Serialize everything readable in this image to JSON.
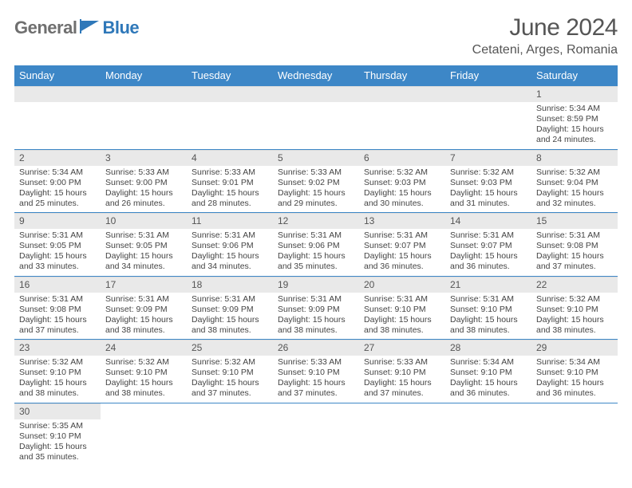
{
  "brand": {
    "part1": "General",
    "part2": "Blue"
  },
  "title": "June 2024",
  "location": "Cetateni, Arges, Romania",
  "colors": {
    "header_bg": "#3d87c7",
    "header_text": "#ffffff",
    "daynum_bg": "#e9e9e9",
    "cell_border": "#3d87c7",
    "brand_gray": "#6f6f6f",
    "brand_blue": "#2f78b9",
    "text": "#444444",
    "background": "#ffffff"
  },
  "weekdays": [
    "Sunday",
    "Monday",
    "Tuesday",
    "Wednesday",
    "Thursday",
    "Friday",
    "Saturday"
  ],
  "weeks": [
    [
      null,
      null,
      null,
      null,
      null,
      null,
      {
        "d": "1",
        "sr": "Sunrise: 5:34 AM",
        "ss": "Sunset: 8:59 PM",
        "dl1": "Daylight: 15 hours",
        "dl2": "and 24 minutes."
      }
    ],
    [
      {
        "d": "2",
        "sr": "Sunrise: 5:34 AM",
        "ss": "Sunset: 9:00 PM",
        "dl1": "Daylight: 15 hours",
        "dl2": "and 25 minutes."
      },
      {
        "d": "3",
        "sr": "Sunrise: 5:33 AM",
        "ss": "Sunset: 9:00 PM",
        "dl1": "Daylight: 15 hours",
        "dl2": "and 26 minutes."
      },
      {
        "d": "4",
        "sr": "Sunrise: 5:33 AM",
        "ss": "Sunset: 9:01 PM",
        "dl1": "Daylight: 15 hours",
        "dl2": "and 28 minutes."
      },
      {
        "d": "5",
        "sr": "Sunrise: 5:33 AM",
        "ss": "Sunset: 9:02 PM",
        "dl1": "Daylight: 15 hours",
        "dl2": "and 29 minutes."
      },
      {
        "d": "6",
        "sr": "Sunrise: 5:32 AM",
        "ss": "Sunset: 9:03 PM",
        "dl1": "Daylight: 15 hours",
        "dl2": "and 30 minutes."
      },
      {
        "d": "7",
        "sr": "Sunrise: 5:32 AM",
        "ss": "Sunset: 9:03 PM",
        "dl1": "Daylight: 15 hours",
        "dl2": "and 31 minutes."
      },
      {
        "d": "8",
        "sr": "Sunrise: 5:32 AM",
        "ss": "Sunset: 9:04 PM",
        "dl1": "Daylight: 15 hours",
        "dl2": "and 32 minutes."
      }
    ],
    [
      {
        "d": "9",
        "sr": "Sunrise: 5:31 AM",
        "ss": "Sunset: 9:05 PM",
        "dl1": "Daylight: 15 hours",
        "dl2": "and 33 minutes."
      },
      {
        "d": "10",
        "sr": "Sunrise: 5:31 AM",
        "ss": "Sunset: 9:05 PM",
        "dl1": "Daylight: 15 hours",
        "dl2": "and 34 minutes."
      },
      {
        "d": "11",
        "sr": "Sunrise: 5:31 AM",
        "ss": "Sunset: 9:06 PM",
        "dl1": "Daylight: 15 hours",
        "dl2": "and 34 minutes."
      },
      {
        "d": "12",
        "sr": "Sunrise: 5:31 AM",
        "ss": "Sunset: 9:06 PM",
        "dl1": "Daylight: 15 hours",
        "dl2": "and 35 minutes."
      },
      {
        "d": "13",
        "sr": "Sunrise: 5:31 AM",
        "ss": "Sunset: 9:07 PM",
        "dl1": "Daylight: 15 hours",
        "dl2": "and 36 minutes."
      },
      {
        "d": "14",
        "sr": "Sunrise: 5:31 AM",
        "ss": "Sunset: 9:07 PM",
        "dl1": "Daylight: 15 hours",
        "dl2": "and 36 minutes."
      },
      {
        "d": "15",
        "sr": "Sunrise: 5:31 AM",
        "ss": "Sunset: 9:08 PM",
        "dl1": "Daylight: 15 hours",
        "dl2": "and 37 minutes."
      }
    ],
    [
      {
        "d": "16",
        "sr": "Sunrise: 5:31 AM",
        "ss": "Sunset: 9:08 PM",
        "dl1": "Daylight: 15 hours",
        "dl2": "and 37 minutes."
      },
      {
        "d": "17",
        "sr": "Sunrise: 5:31 AM",
        "ss": "Sunset: 9:09 PM",
        "dl1": "Daylight: 15 hours",
        "dl2": "and 38 minutes."
      },
      {
        "d": "18",
        "sr": "Sunrise: 5:31 AM",
        "ss": "Sunset: 9:09 PM",
        "dl1": "Daylight: 15 hours",
        "dl2": "and 38 minutes."
      },
      {
        "d": "19",
        "sr": "Sunrise: 5:31 AM",
        "ss": "Sunset: 9:09 PM",
        "dl1": "Daylight: 15 hours",
        "dl2": "and 38 minutes."
      },
      {
        "d": "20",
        "sr": "Sunrise: 5:31 AM",
        "ss": "Sunset: 9:10 PM",
        "dl1": "Daylight: 15 hours",
        "dl2": "and 38 minutes."
      },
      {
        "d": "21",
        "sr": "Sunrise: 5:31 AM",
        "ss": "Sunset: 9:10 PM",
        "dl1": "Daylight: 15 hours",
        "dl2": "and 38 minutes."
      },
      {
        "d": "22",
        "sr": "Sunrise: 5:32 AM",
        "ss": "Sunset: 9:10 PM",
        "dl1": "Daylight: 15 hours",
        "dl2": "and 38 minutes."
      }
    ],
    [
      {
        "d": "23",
        "sr": "Sunrise: 5:32 AM",
        "ss": "Sunset: 9:10 PM",
        "dl1": "Daylight: 15 hours",
        "dl2": "and 38 minutes."
      },
      {
        "d": "24",
        "sr": "Sunrise: 5:32 AM",
        "ss": "Sunset: 9:10 PM",
        "dl1": "Daylight: 15 hours",
        "dl2": "and 38 minutes."
      },
      {
        "d": "25",
        "sr": "Sunrise: 5:32 AM",
        "ss": "Sunset: 9:10 PM",
        "dl1": "Daylight: 15 hours",
        "dl2": "and 37 minutes."
      },
      {
        "d": "26",
        "sr": "Sunrise: 5:33 AM",
        "ss": "Sunset: 9:10 PM",
        "dl1": "Daylight: 15 hours",
        "dl2": "and 37 minutes."
      },
      {
        "d": "27",
        "sr": "Sunrise: 5:33 AM",
        "ss": "Sunset: 9:10 PM",
        "dl1": "Daylight: 15 hours",
        "dl2": "and 37 minutes."
      },
      {
        "d": "28",
        "sr": "Sunrise: 5:34 AM",
        "ss": "Sunset: 9:10 PM",
        "dl1": "Daylight: 15 hours",
        "dl2": "and 36 minutes."
      },
      {
        "d": "29",
        "sr": "Sunrise: 5:34 AM",
        "ss": "Sunset: 9:10 PM",
        "dl1": "Daylight: 15 hours",
        "dl2": "and 36 minutes."
      }
    ],
    [
      {
        "d": "30",
        "sr": "Sunrise: 5:35 AM",
        "ss": "Sunset: 9:10 PM",
        "dl1": "Daylight: 15 hours",
        "dl2": "and 35 minutes."
      },
      null,
      null,
      null,
      null,
      null,
      null
    ]
  ]
}
